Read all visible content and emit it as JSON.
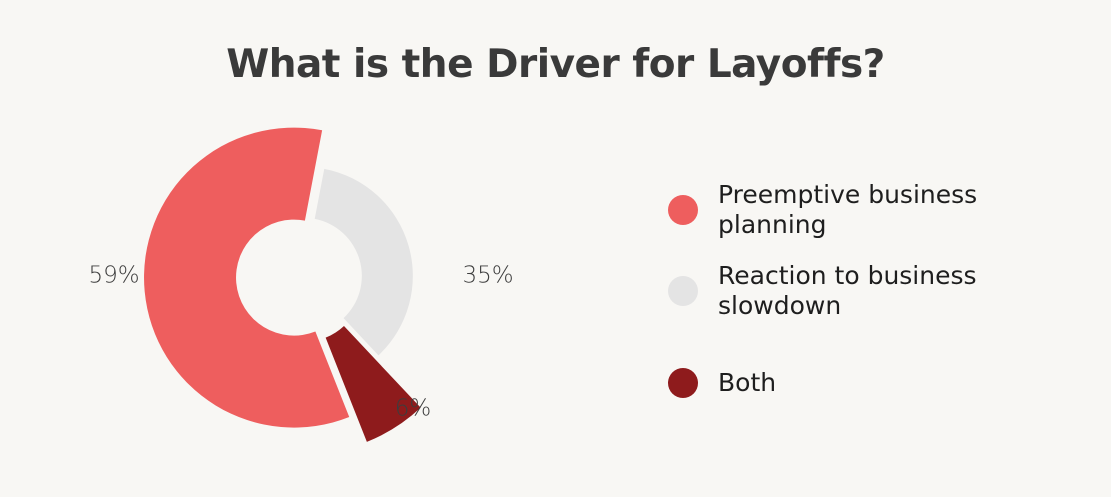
{
  "chart_data": {
    "type": "pie",
    "title": "What is the Driver for Layoffs?",
    "categories": [
      "Preemptive business planning",
      "Reaction to business slowdown",
      "Both"
    ],
    "values": [
      59,
      35,
      6
    ],
    "data_labels": [
      "59%",
      "35%",
      "6%"
    ],
    "colors": [
      "#ee5e5e",
      "#e4e4e4",
      "#8e1b1c"
    ],
    "donut": true,
    "legend_position": "right"
  },
  "legend": {
    "items": [
      {
        "label": "Preemptive business planning",
        "color": "#ee5e5e"
      },
      {
        "label": "Reaction to business slowdown",
        "color": "#e4e4e4"
      },
      {
        "label": "Both",
        "color": "#8e1b1c"
      }
    ]
  },
  "colors": {
    "background": "#f8f7f4",
    "title": "#3a3a3a"
  }
}
